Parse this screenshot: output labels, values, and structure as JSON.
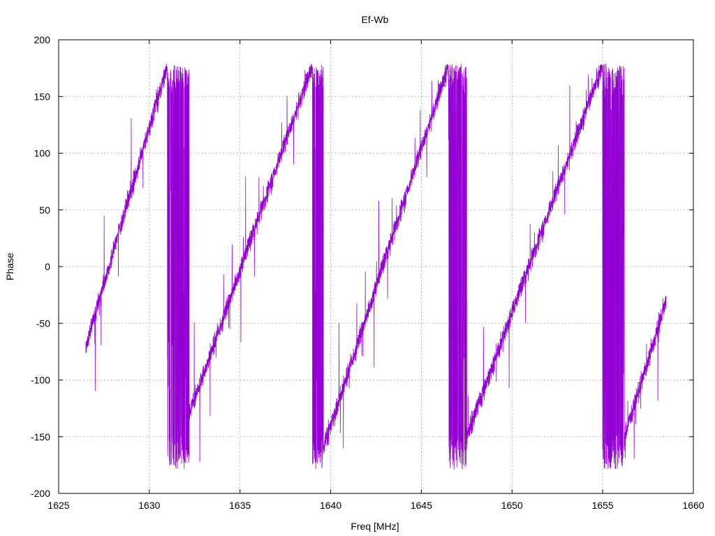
{
  "chart_data": {
    "type": "line",
    "title": "Ef-Wb",
    "xlabel": "Freq [MHz]",
    "ylabel": "Phase",
    "xlim": [
      1625,
      1660
    ],
    "ylim": [
      -200,
      200
    ],
    "xticks": [
      1625,
      1630,
      1635,
      1640,
      1645,
      1650,
      1655,
      1660
    ],
    "yticks": [
      -200,
      -150,
      -100,
      -50,
      0,
      50,
      100,
      150,
      200
    ],
    "grid": true,
    "legend": "none",
    "series": [
      {
        "color": "#9400D3",
        "x_range": [
          1626.5,
          1658.5
        ],
        "phase_wraps": [
          {
            "x_start": 1626.5,
            "x_end": 1631.0,
            "y_start": -70,
            "y_end": 178
          },
          {
            "x_start": 1631.0,
            "x_end": 1632.2,
            "y_start": -178,
            "y_end": 178,
            "noisy": true
          },
          {
            "x_start": 1632.2,
            "x_end": 1639.0,
            "y_start": -130,
            "y_end": 178
          },
          {
            "x_start": 1639.0,
            "x_end": 1639.6,
            "y_start": -178,
            "y_end": 178,
            "noisy": true
          },
          {
            "x_start": 1639.6,
            "x_end": 1646.5,
            "y_start": -160,
            "y_end": 178
          },
          {
            "x_start": 1646.5,
            "x_end": 1647.5,
            "y_start": -178,
            "y_end": 178,
            "noisy": true
          },
          {
            "x_start": 1647.5,
            "x_end": 1655.0,
            "y_start": -150,
            "y_end": 178
          },
          {
            "x_start": 1655.0,
            "x_end": 1656.2,
            "y_start": -178,
            "y_end": 178,
            "noisy": true
          },
          {
            "x_start": 1656.2,
            "x_end": 1658.5,
            "y_start": -150,
            "y_end": -30
          }
        ]
      }
    ]
  }
}
